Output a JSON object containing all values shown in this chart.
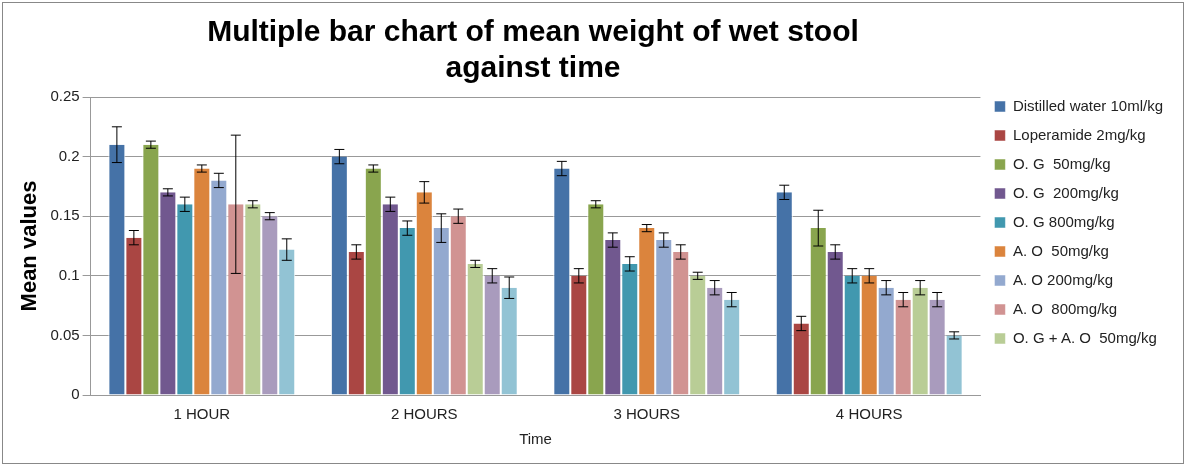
{
  "chart_data": {
    "type": "bar",
    "title": "Multiple bar chart of mean weight of wet stool against time",
    "xlabel": "Time",
    "ylabel": "Mean values",
    "categories": [
      "1 HOUR",
      "2 HOURS",
      "3 HOURS",
      "4 HOURS"
    ],
    "ylim": [
      0,
      0.25
    ],
    "yticks": [
      0,
      0.05,
      0.1,
      0.15,
      0.2,
      0.25
    ],
    "grid": "y",
    "legend": "right",
    "series": [
      {
        "name": "Distilled water 10ml/kg",
        "color": "#4572a7",
        "values": [
          0.21,
          0.2,
          0.19,
          0.17
        ],
        "errors": [
          0.015,
          0.006,
          0.006,
          0.006
        ]
      },
      {
        "name": "Loperamide 2mg/kg",
        "color": "#aa4643",
        "values": [
          0.132,
          0.12,
          0.1,
          0.06
        ],
        "errors": [
          0.006,
          0.006,
          0.006,
          0.006
        ]
      },
      {
        "name": "O. G  50mg/kg",
        "color": "#89a54e",
        "values": [
          0.21,
          0.19,
          0.16,
          0.14
        ],
        "errors": [
          0.003,
          0.003,
          0.003,
          0.015
        ]
      },
      {
        "name": "O. G  200mg/kg",
        "color": "#71588f",
        "values": [
          0.17,
          0.16,
          0.13,
          0.12
        ],
        "errors": [
          0.003,
          0.006,
          0.006,
          0.006
        ]
      },
      {
        "name": "O. G 800mg/kg",
        "color": "#4198af",
        "values": [
          0.16,
          0.14,
          0.11,
          0.1
        ],
        "errors": [
          0.006,
          0.006,
          0.006,
          0.006
        ]
      },
      {
        "name": "A. O  50mg/kg",
        "color": "#db843d",
        "values": [
          0.19,
          0.17,
          0.14,
          0.1
        ],
        "errors": [
          0.003,
          0.009,
          0.003,
          0.006
        ]
      },
      {
        "name": "A. O 200mg/kg",
        "color": "#93a9cf",
        "values": [
          0.18,
          0.14,
          0.13,
          0.09
        ],
        "errors": [
          0.006,
          0.012,
          0.006,
          0.006
        ]
      },
      {
        "name": "A. O  800mg/kg",
        "color": "#d19392",
        "values": [
          0.16,
          0.15,
          0.12,
          0.08
        ],
        "errors": [
          0.058,
          0.006,
          0.006,
          0.006
        ]
      },
      {
        "name": "O. G + A. O  50mg/kg",
        "color": "#b9cd96",
        "values": [
          0.16,
          0.11,
          0.1,
          0.09
        ],
        "errors": [
          0.003,
          0.003,
          0.003,
          0.006
        ]
      },
      {
        "color": "#a99bbd",
        "values": [
          0.15,
          0.1,
          0.09,
          0.08
        ],
        "errors": [
          0.003,
          0.006,
          0.006,
          0.006
        ]
      },
      {
        "color": "#92c3d4",
        "values": [
          0.122,
          0.09,
          0.08,
          0.05
        ],
        "errors": [
          0.009,
          0.009,
          0.006,
          0.003
        ]
      }
    ]
  }
}
